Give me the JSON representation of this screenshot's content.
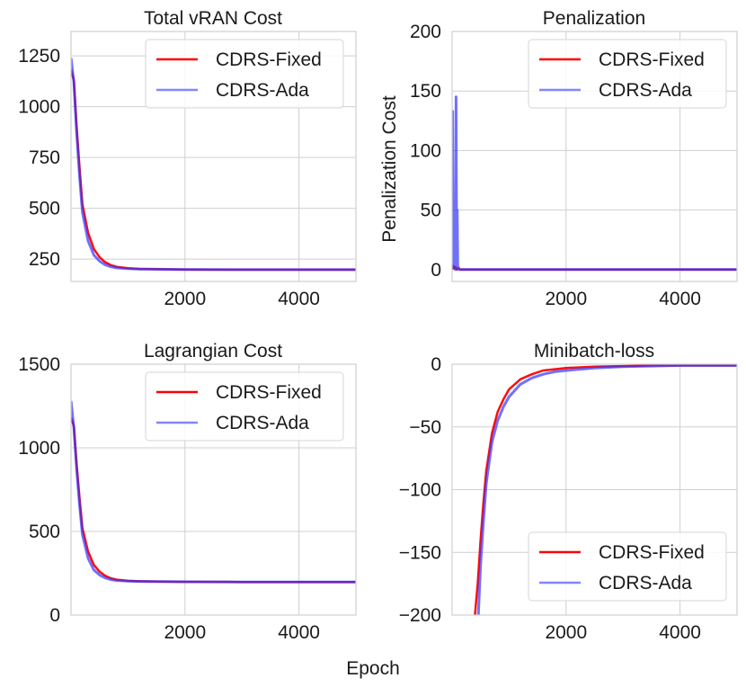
{
  "figure": {
    "xlabel": "Epoch",
    "colors": {
      "CDRS-Fixed": "#ff0000",
      "CDRS-Ada": "#3333ff",
      "grid": "#cfcfcf"
    }
  },
  "chart_data": [
    {
      "type": "line",
      "title": "Total vRAN Cost",
      "xlabel": "",
      "ylabel": "",
      "xlim": [
        0,
        5000
      ],
      "ylim": [
        140,
        1370
      ],
      "xticks": [
        2000,
        4000
      ],
      "xtick_labels": [
        "2000",
        "4000"
      ],
      "yticks": [
        250,
        500,
        750,
        1000,
        1250
      ],
      "ytick_labels": [
        "250",
        "500",
        "750",
        "1000",
        "1250"
      ],
      "grid": true,
      "legend": {
        "position": "top-right",
        "entries": [
          "CDRS-Fixed",
          "CDRS-Ada"
        ]
      },
      "series": [
        {
          "name": "CDRS-Fixed",
          "color": "#ff0000",
          "x": [
            0,
            50,
            100,
            150,
            200,
            300,
            400,
            500,
            600,
            700,
            800,
            1000,
            1200,
            1500,
            2000,
            3000,
            4000,
            5000
          ],
          "y": [
            1180,
            1130,
            900,
            700,
            520,
            380,
            300,
            260,
            235,
            220,
            212,
            205,
            202,
            200,
            199,
            198,
            198,
            198
          ]
        },
        {
          "name": "CDRS-Ada",
          "color": "#3333ff",
          "x": [
            0,
            50,
            100,
            150,
            200,
            300,
            400,
            500,
            600,
            700,
            800,
            1000,
            1200,
            1500,
            2000,
            3000,
            4000,
            5000
          ],
          "y": [
            1240,
            1120,
            870,
            660,
            480,
            340,
            270,
            240,
            222,
            212,
            207,
            203,
            201,
            200,
            199,
            198,
            198,
            198
          ]
        }
      ]
    },
    {
      "type": "line",
      "title": "Penalization",
      "xlabel": "",
      "ylabel": "Penalization Cost",
      "xlim": [
        0,
        5000
      ],
      "ylim": [
        -10,
        200
      ],
      "xticks": [
        2000,
        4000
      ],
      "xtick_labels": [
        "2000",
        "4000"
      ],
      "yticks": [
        0,
        50,
        100,
        150,
        200
      ],
      "ytick_labels": [
        "0",
        "50",
        "100",
        "150",
        "200"
      ],
      "grid": true,
      "legend": {
        "position": "top-right",
        "entries": [
          "CDRS-Fixed",
          "CDRS-Ada"
        ]
      },
      "series": [
        {
          "name": "CDRS-Fixed",
          "color": "#ff0000",
          "x": [
            0,
            20,
            40,
            60,
            80,
            100,
            150,
            200,
            500,
            1000,
            2000,
            3000,
            4000,
            5000
          ],
          "y": [
            0,
            3,
            1,
            2,
            0,
            1,
            0,
            0,
            0,
            0,
            0,
            0,
            0,
            0
          ]
        },
        {
          "name": "CDRS-Ada",
          "color": "#3333ff",
          "x": [
            0,
            10,
            20,
            30,
            40,
            50,
            60,
            70,
            80,
            90,
            100,
            110,
            120,
            150,
            200,
            500,
            1000,
            2000,
            3000,
            4000,
            5000
          ],
          "y": [
            0,
            133,
            10,
            47,
            2,
            27,
            0,
            145,
            3,
            50,
            1,
            2,
            0,
            0,
            0,
            0,
            0,
            0,
            0,
            0,
            0
          ]
        }
      ]
    },
    {
      "type": "line",
      "title": "Lagrangian Cost",
      "xlabel": "",
      "ylabel": "",
      "xlim": [
        0,
        5000
      ],
      "ylim": [
        0,
        1500
      ],
      "xticks": [
        2000,
        4000
      ],
      "xtick_labels": [
        "2000",
        "4000"
      ],
      "yticks": [
        0,
        500,
        1000,
        1500
      ],
      "ytick_labels": [
        "0",
        "500",
        "1000",
        "1500"
      ],
      "grid": true,
      "legend": {
        "position": "top-right",
        "entries": [
          "CDRS-Fixed",
          "CDRS-Ada"
        ]
      },
      "series": [
        {
          "name": "CDRS-Fixed",
          "color": "#ff0000",
          "x": [
            0,
            50,
            100,
            150,
            200,
            300,
            400,
            500,
            600,
            700,
            800,
            1000,
            1200,
            1500,
            2000,
            3000,
            4000,
            5000
          ],
          "y": [
            1180,
            1130,
            900,
            700,
            520,
            380,
            300,
            260,
            235,
            220,
            212,
            205,
            202,
            200,
            199,
            198,
            198,
            198
          ]
        },
        {
          "name": "CDRS-Ada",
          "color": "#3333ff",
          "x": [
            0,
            50,
            100,
            150,
            200,
            300,
            400,
            500,
            600,
            700,
            800,
            1000,
            1200,
            1500,
            2000,
            3000,
            4000,
            5000
          ],
          "y": [
            1280,
            1120,
            870,
            660,
            480,
            340,
            270,
            240,
            222,
            212,
            207,
            203,
            201,
            200,
            199,
            198,
            198,
            198
          ]
        }
      ]
    },
    {
      "type": "line",
      "title": "Minibatch-loss",
      "xlabel": "",
      "ylabel": "",
      "xlim": [
        0,
        5000
      ],
      "ylim": [
        -200,
        0
      ],
      "xticks": [
        2000,
        4000
      ],
      "xtick_labels": [
        "2000",
        "4000"
      ],
      "yticks": [
        -200,
        -150,
        -100,
        -50,
        0
      ],
      "ytick_labels": [
        "−200",
        "−150",
        "−100",
        "−50",
        "0"
      ],
      "grid": true,
      "legend": {
        "position": "bottom-right",
        "entries": [
          "CDRS-Fixed",
          "CDRS-Ada"
        ]
      },
      "series": [
        {
          "name": "CDRS-Fixed",
          "color": "#ff0000",
          "x": [
            400,
            450,
            500,
            550,
            600,
            700,
            800,
            900,
            1000,
            1200,
            1400,
            1600,
            1800,
            2000,
            2500,
            3000,
            3500,
            4000,
            4500,
            5000
          ],
          "y": [
            -200,
            -175,
            -140,
            -110,
            -85,
            -55,
            -38,
            -28,
            -20,
            -12,
            -8,
            -5,
            -4,
            -3,
            -2,
            -1.5,
            -1,
            -1,
            -1,
            -1
          ]
        },
        {
          "name": "CDRS-Ada",
          "color": "#3333ff",
          "x": [
            460,
            500,
            550,
            600,
            700,
            800,
            900,
            1000,
            1200,
            1400,
            1600,
            1800,
            2000,
            2500,
            3000,
            3500,
            4000,
            4500,
            5000
          ],
          "y": [
            -200,
            -160,
            -125,
            -95,
            -62,
            -45,
            -34,
            -26,
            -16,
            -11,
            -8,
            -6,
            -5,
            -3,
            -2,
            -1.5,
            -1,
            -1,
            -1
          ]
        }
      ]
    }
  ]
}
